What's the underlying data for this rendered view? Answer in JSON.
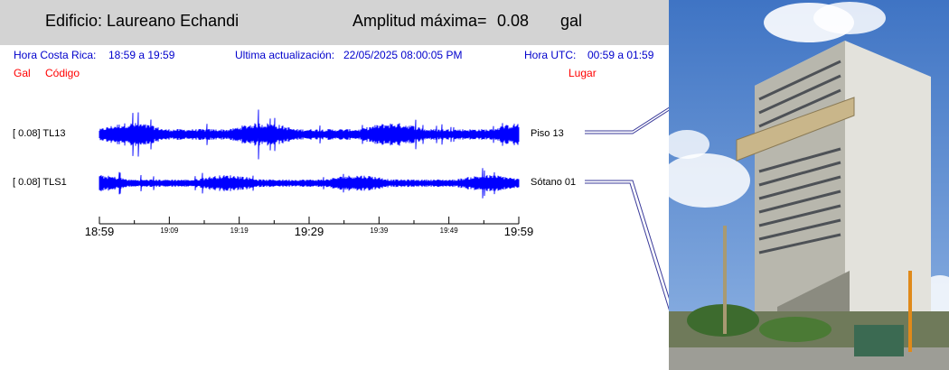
{
  "header": {
    "building": "Edificio: Laureano Echandi",
    "amp_label": "Amplitud máxima=",
    "amp_value": "0.08",
    "amp_unit": "gal"
  },
  "info": {
    "cr_label": "Hora Costa Rica:",
    "cr_range": "18:59 a 19:59",
    "update_label": "Ultima actualización:",
    "update_value": "22/05/2025 08:00:05 PM",
    "utc_label": "Hora UTC:",
    "utc_range": "00:59 a 01:59"
  },
  "columns": {
    "gal": "Gal",
    "code": "Código",
    "place": "Lugar"
  },
  "colors": {
    "trace": "#0000ff",
    "info": "#0000cc",
    "columns": "#ff0000",
    "header_bg": "#d3d3d3"
  },
  "chart_data": {
    "type": "line",
    "title": "",
    "xlabel": "",
    "ylabel": "",
    "x_range": [
      "18:59",
      "19:59"
    ],
    "series": [
      {
        "name": "TL13",
        "max_amp": "[   0.08] TL13",
        "place": "Piso 13"
      },
      {
        "name": "TLS1",
        "max_amp": "[   0.08] TLS1",
        "place": "Sótano 01"
      }
    ],
    "ticks": [
      {
        "label": "18:59",
        "major": true
      },
      {
        "label": "19:09",
        "major": false
      },
      {
        "label": "19:19",
        "major": false
      },
      {
        "label": "19:29",
        "major": true
      },
      {
        "label": "19:39",
        "major": false
      },
      {
        "label": "19:49",
        "major": false
      },
      {
        "label": "19:59",
        "major": true
      }
    ]
  }
}
